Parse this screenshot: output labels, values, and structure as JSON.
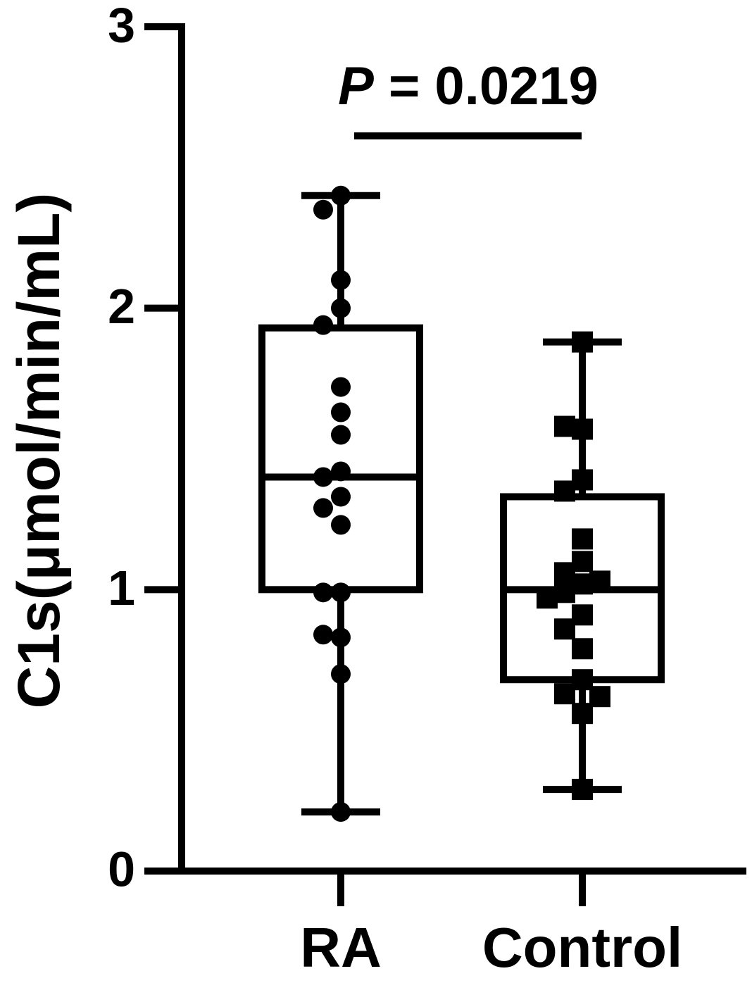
{
  "chart_data": {
    "type": "box",
    "ylabel": "C1s(μmol/min/mL)",
    "categories": [
      "RA",
      "Control"
    ],
    "ylim": [
      0,
      3
    ],
    "yticks": [
      0,
      1,
      2,
      3
    ],
    "color": "#000000",
    "annotation": {
      "symbol": "P",
      "text": "= 0.0219"
    },
    "boxes": [
      {
        "marker": "circle",
        "min": 0.21,
        "q1": 1.0,
        "median": 1.4,
        "q3": 1.93,
        "max": 2.4,
        "points": [
          2.4,
          2.35,
          2.1,
          2.0,
          1.94,
          1.72,
          1.63,
          1.55,
          1.42,
          1.4,
          1.33,
          1.29,
          1.23,
          0.99,
          0.99,
          0.83,
          0.84,
          0.7,
          0.21
        ]
      },
      {
        "marker": "square",
        "min": 0.29,
        "q1": 0.68,
        "median": 1.0,
        "q3": 1.33,
        "max": 1.88,
        "points": [
          1.88,
          1.57,
          1.58,
          1.39,
          1.35,
          1.18,
          1.1,
          1.02,
          1.06,
          0.99,
          1.03,
          0.97,
          0.91,
          0.86,
          0.79,
          0.68,
          0.63,
          0.62,
          0.56,
          0.29
        ]
      }
    ]
  }
}
